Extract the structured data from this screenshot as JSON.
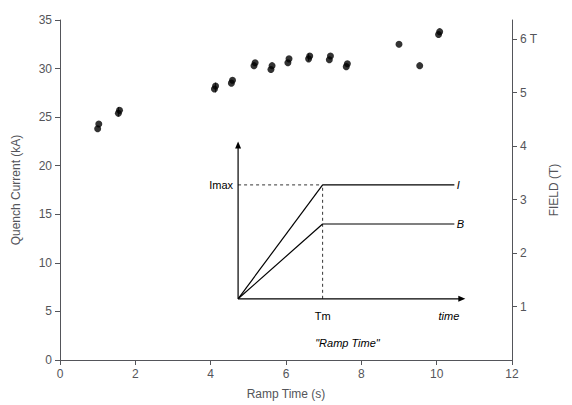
{
  "chart_data": {
    "type": "scatter",
    "xlabel": "Ramp Time (s)",
    "ylabel": "Quench Current (kA)",
    "y2label": "FIELD (T)",
    "x": [
      1.0,
      1.03,
      1.55,
      1.58,
      4.1,
      4.13,
      4.55,
      4.58,
      5.15,
      5.18,
      5.6,
      5.63,
      6.05,
      6.08,
      6.6,
      6.63,
      7.15,
      7.18,
      7.6,
      7.63,
      9.0,
      9.55,
      10.05,
      10.08
    ],
    "values": [
      23.8,
      24.3,
      25.4,
      25.7,
      27.9,
      28.2,
      28.5,
      28.8,
      30.3,
      30.6,
      29.9,
      30.3,
      30.6,
      31.0,
      31.0,
      31.3,
      30.9,
      31.3,
      30.2,
      30.5,
      32.5,
      30.3,
      33.5,
      33.8
    ],
    "color": "black",
    "marker": "circle",
    "error_bars": {
      "x": [
        1.55,
        4.13,
        6.6
      ],
      "y": [
        25.55,
        28.05,
        31.15
      ],
      "yerr": [
        0.5,
        0.5,
        0.4
      ]
    },
    "xlim": [
      0,
      12
    ],
    "xticks": [
      0,
      2,
      4,
      6,
      8,
      10,
      12
    ],
    "ylim": [
      0,
      35
    ],
    "yticks": [
      0,
      5,
      10,
      15,
      20,
      25,
      30,
      35
    ],
    "y2lim": [
      0,
      6.36
    ],
    "y2ticks": [
      1,
      2,
      3,
      4,
      5,
      {
        "value": 6,
        "label": "6 T"
      }
    ],
    "grid": false,
    "inset": {
      "curve_upper": "I",
      "curve_lower": "B",
      "level_label": "Imax",
      "time_mark": "Tm",
      "axis_label": "time",
      "caption": "\"Ramp Time\""
    }
  }
}
